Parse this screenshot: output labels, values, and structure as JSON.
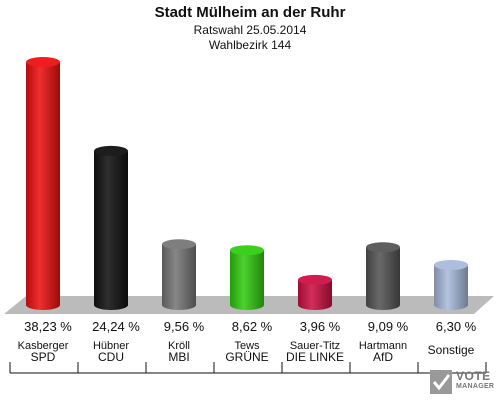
{
  "header": {
    "title": "Stadt Mülheim an der Ruhr",
    "subtitle": "Ratswahl 25.05.2014",
    "district": "Wahlbezirk 144"
  },
  "chart_data": {
    "type": "bar",
    "title": "Stadt Mülheim an der Ruhr",
    "subtitle": "Ratswahl 25.05.2014 / Wahlbezirk 144",
    "unit": "%",
    "ylim": [
      0,
      40
    ],
    "grid": false,
    "legend": "none",
    "categories": [
      "SPD",
      "CDU",
      "MBI",
      "GRÜNE",
      "DIE LINKE",
      "AfD",
      "Sonstige"
    ],
    "candidates": [
      "Kasberger",
      "Hübner",
      "Kröll",
      "Tews",
      "Sauer-Titz",
      "Hartmann",
      ""
    ],
    "values": [
      38.23,
      24.24,
      9.56,
      8.62,
      3.96,
      9.09,
      6.3
    ],
    "labels": [
      "38,23 %",
      "24,24 %",
      "9,56 %",
      "8,62 %",
      "3,96 %",
      "9,09 %",
      "6,30 %"
    ],
    "colors": [
      "#ee1111",
      "#111111",
      "#777777",
      "#33cc11",
      "#cc1144",
      "#555555",
      "#aabbdd"
    ]
  },
  "logo": {
    "line1": "VOTE",
    "line2": "MANAGER"
  }
}
